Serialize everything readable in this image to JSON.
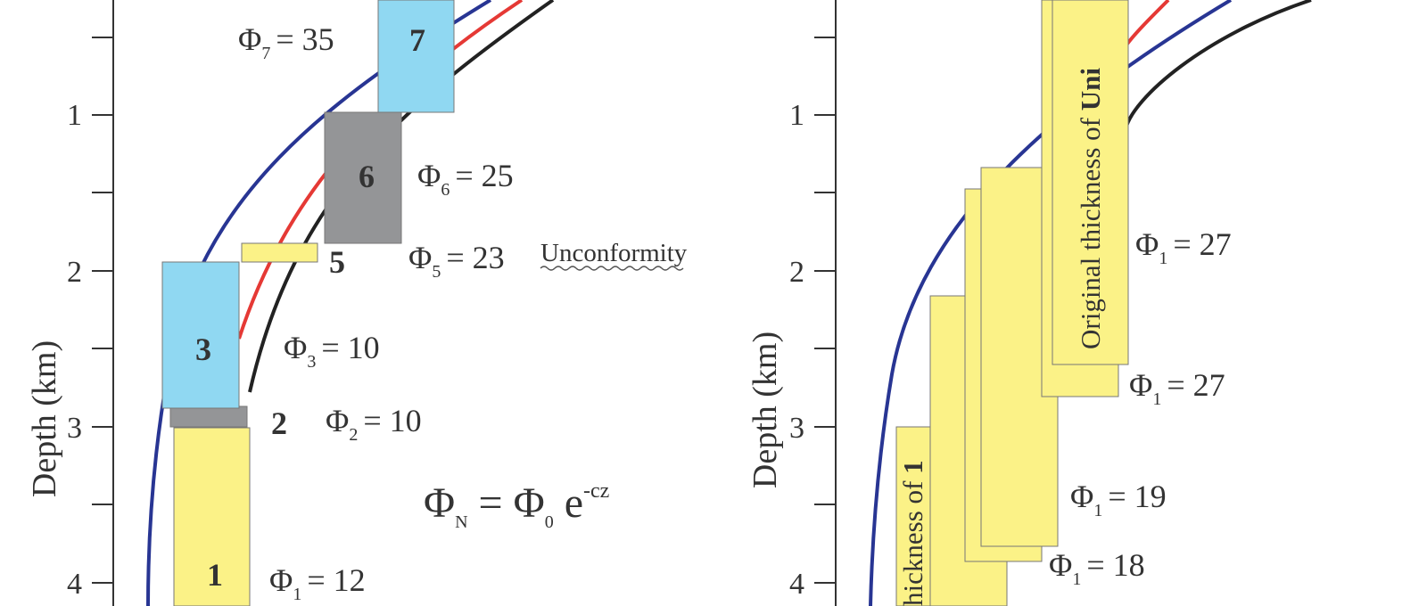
{
  "colors": {
    "blue_curve": "#283593",
    "red_curve": "#e53935",
    "black_curve": "#222222",
    "unit_yellow": "#fbf287",
    "unit_cyan": "#90d8f2",
    "unit_gray": "#949597",
    "text": "#333333"
  },
  "left_panel": {
    "axis_label": "Depth (km)",
    "ticks": [
      "1",
      "2",
      "3",
      "4"
    ],
    "units": [
      {
        "id": "7",
        "label": "7",
        "color": "cyan"
      },
      {
        "id": "6",
        "label": "6",
        "color": "gray"
      },
      {
        "id": "5",
        "label": "5",
        "color": "yellow"
      },
      {
        "id": "3",
        "label": "3",
        "color": "cyan"
      },
      {
        "id": "2",
        "label": "2",
        "color": "gray"
      },
      {
        "id": "1",
        "label": "1",
        "color": "yellow"
      }
    ],
    "porosities": [
      {
        "symbol": "Φ",
        "sub": "7",
        "value": "= 35"
      },
      {
        "symbol": "Φ",
        "sub": "6",
        "value": "= 25"
      },
      {
        "symbol": "Φ",
        "sub": "5",
        "value": "= 23"
      },
      {
        "symbol": "Φ",
        "sub": "3",
        "value": "= 10"
      },
      {
        "symbol": "Φ",
        "sub": "2",
        "value": "= 10"
      },
      {
        "symbol": "Φ",
        "sub": "1",
        "value": "= 12"
      }
    ],
    "unconformity": "Unconformity",
    "equation": {
      "lhs": "Φ",
      "lhs_sub": "N",
      "eq": "=",
      "rhs": "Φ",
      "rhs_sub": "0",
      "exp_base": "e",
      "exp_sup": "-cz"
    }
  },
  "right_panel": {
    "axis_label": "Depth (km)",
    "ticks": [
      "1",
      "2",
      "3",
      "4"
    ],
    "porosities": [
      {
        "symbol": "Φ",
        "sub": "1",
        "value": "= 27"
      },
      {
        "symbol": "Φ",
        "sub": "1",
        "value": "= 27"
      },
      {
        "symbol": "Φ",
        "sub": "1",
        "value": "= 19"
      },
      {
        "symbol": "Φ",
        "sub": "1",
        "value": "= 18"
      }
    ],
    "rotated_labels": {
      "top_plain": "Original thickness of ",
      "top_bold": "Uni",
      "bottom_plain": "hickness of ",
      "bottom_bold": "1"
    }
  }
}
